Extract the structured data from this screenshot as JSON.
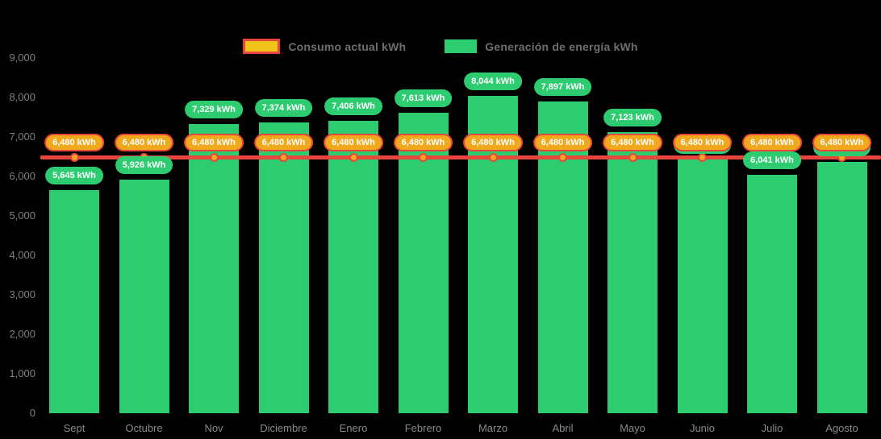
{
  "colors": {
    "background": "#000000",
    "bar_green": "#2ECC71",
    "pill_green_fill": "#2ECC71",
    "pill_orange_fill": "#F0A81C",
    "pill_red_border": "#E8453C",
    "line_red": "#E8453C",
    "marker_orange_fill": "#F5A623",
    "legend_swatch_yellow": "#EFC319",
    "pill_text": "#FFFFFF",
    "axis_text": "#7F7F7F",
    "legend_text": "#6E6E6E"
  },
  "legend": {
    "items": [
      {
        "label": "Consumo actual kWh",
        "swatch": "consumo"
      },
      {
        "label": "Generación de energía kWh",
        "swatch": "generacion"
      }
    ]
  },
  "chart_data": {
    "type": "bar",
    "title": "",
    "xlabel": "",
    "ylabel": "",
    "grid": false,
    "legend_position": "top",
    "ylim": [
      0,
      9000
    ],
    "yticks": [
      0,
      1000,
      2000,
      3000,
      4000,
      5000,
      6000,
      7000,
      8000,
      9000
    ],
    "ytick_labels": [
      "0",
      "1,000",
      "2,000",
      "3,000",
      "4,000",
      "5,000",
      "6,000",
      "7,000",
      "8,000",
      "9,000"
    ],
    "categories": [
      "Sept",
      "Octubre",
      "Nov",
      "Diciembre",
      "Enero",
      "Febrero",
      "Marzo",
      "Abril",
      "Mayo",
      "Junio",
      "Julio",
      "Agosto"
    ],
    "series": [
      {
        "name": "Generación de energía kWh",
        "type": "bar",
        "values": [
          5645,
          5926,
          7329,
          7374,
          7406,
          7613,
          8044,
          7897,
          7123,
          6430,
          6041,
          6368
        ],
        "labels": [
          "5,645 kWh",
          "5,926 kWh",
          "7,329 kWh",
          "7,374 kWh",
          "7,406 kWh",
          "7,613 kWh",
          "8,044 kWh",
          "7,897 kWh",
          "7,123 kWh",
          "6,430 kWh",
          "6,041 kWh",
          "6,368 kWh"
        ]
      },
      {
        "name": "Consumo actual kWh",
        "type": "line",
        "values": [
          6480,
          6480,
          6480,
          6480,
          6480,
          6480,
          6480,
          6480,
          6480,
          6480,
          6480,
          6480
        ],
        "labels": [
          "6,480 kWh",
          "6,480 kWh",
          "6,480 kWh",
          "6,480 kWh",
          "6,480 kWh",
          "6,480 kWh",
          "6,480 kWh",
          "6,480 kWh",
          "6,480 kWh",
          "6,480 kWh",
          "6,480 kWh",
          "6,480 kWh"
        ]
      }
    ]
  }
}
